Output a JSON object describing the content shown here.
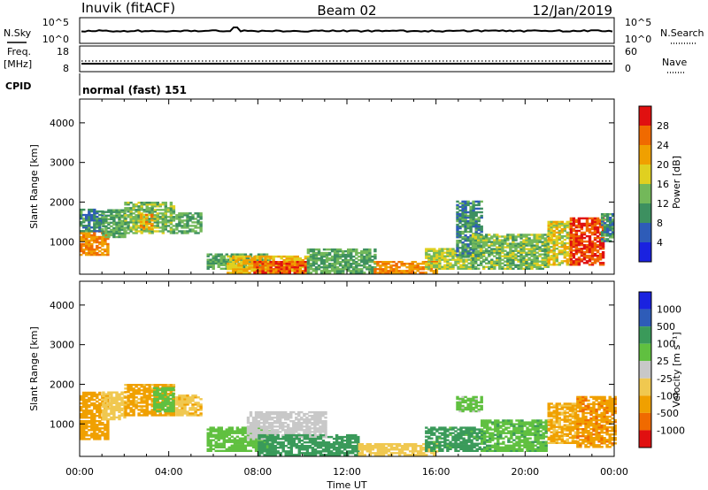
{
  "header": {
    "station": "Inuvik (fitACF)",
    "beam": "Beam 02",
    "date": "12/Jan/2019"
  },
  "left_labels": {
    "nsky": "N.Sky",
    "freq": "Freq.",
    "mhz": "[MHz]",
    "cpid": "CPID",
    "nsky_hi": "10^5",
    "nsky_lo": "10^0",
    "freq_hi": "18",
    "freq_lo": "8"
  },
  "right_labels": {
    "nsearch": "N.Search",
    "nave": "Nave",
    "nsearch_hi": "10^5",
    "nsearch_lo": "10^0",
    "nave_hi": "60",
    "nave_lo": "0"
  },
  "cpid_text": "normal (fast) 151",
  "colors": {
    "power": [
      "#1a22e0",
      "#2e5cb8",
      "#3d9060",
      "#73b85a",
      "#e0d020",
      "#f0a000",
      "#f06a00",
      "#e01010"
    ],
    "velocity": [
      "#e01010",
      "#f06a00",
      "#f0a000",
      "#f0c850",
      "#c8c8c8",
      "#60c040",
      "#3a9a5a",
      "#2e5cb8",
      "#1a22e0"
    ]
  },
  "chart_data": [
    {
      "type": "heatmap",
      "name": "power",
      "xlabel": "Time UT",
      "ylabel": "Slant Range [km]",
      "colorbar_label": "Power [dB]",
      "colorbar_ticks": [
        "28",
        "24",
        "20",
        "16",
        "12",
        "8",
        "4"
      ],
      "x_ticks": [
        "00:00",
        "04:00",
        "08:00",
        "12:00",
        "16:00",
        "20:00",
        "00:00"
      ],
      "xlim_hours": [
        0,
        24
      ],
      "ylim_km": [
        180,
        4600
      ],
      "y_ticks": [
        1000,
        2000,
        3000,
        4000
      ],
      "clim_db": [
        0,
        32
      ],
      "regions": [
        {
          "t0": 0.0,
          "t1": 1.3,
          "r0": 650,
          "r1": 1250,
          "value": 24
        },
        {
          "t0": 0.0,
          "t1": 1.0,
          "r0": 1250,
          "r1": 1800,
          "value": 10
        },
        {
          "t0": 1.0,
          "t1": 2.0,
          "r0": 1100,
          "r1": 1800,
          "value": 12
        },
        {
          "t0": 2.0,
          "t1": 4.2,
          "r0": 1200,
          "r1": 2000,
          "value": 14
        },
        {
          "t0": 2.7,
          "t1": 3.3,
          "r0": 1300,
          "r1": 1700,
          "value": 22
        },
        {
          "t0": 4.3,
          "t1": 5.5,
          "r0": 1200,
          "r1": 1700,
          "value": 12
        },
        {
          "t0": 5.7,
          "t1": 8.5,
          "r0": 300,
          "r1": 700,
          "value": 12
        },
        {
          "t0": 6.6,
          "t1": 10.2,
          "r0": 200,
          "r1": 650,
          "value": 20
        },
        {
          "t0": 7.8,
          "t1": 10.2,
          "r0": 200,
          "r1": 500,
          "value": 27
        },
        {
          "t0": 10.2,
          "t1": 13.2,
          "r0": 200,
          "r1": 800,
          "value": 12
        },
        {
          "t0": 13.2,
          "t1": 16.0,
          "r0": 200,
          "r1": 500,
          "value": 24
        },
        {
          "t0": 15.5,
          "t1": 17.6,
          "r0": 300,
          "r1": 800,
          "value": 16
        },
        {
          "t0": 16.9,
          "t1": 18.0,
          "r0": 600,
          "r1": 2000,
          "value": 10
        },
        {
          "t0": 17.6,
          "t1": 21.0,
          "r0": 300,
          "r1": 1200,
          "value": 14
        },
        {
          "t0": 21.0,
          "t1": 22.0,
          "r0": 400,
          "r1": 1500,
          "value": 18
        },
        {
          "t0": 22.0,
          "t1": 23.5,
          "r0": 400,
          "r1": 1600,
          "value": 28
        },
        {
          "t0": 23.4,
          "t1": 24.0,
          "r0": 1000,
          "r1": 1700,
          "value": 10
        }
      ]
    },
    {
      "type": "heatmap",
      "name": "velocity",
      "xlabel": "Time UT",
      "ylabel": "Slant Range [km]",
      "colorbar_label": "Velocity [m s⁻¹]",
      "colorbar_ticks": [
        "1000",
        "500",
        "100",
        "25",
        "-25",
        "-100",
        "-500",
        "-1000"
      ],
      "x_ticks": [
        "00:00",
        "04:00",
        "08:00",
        "12:00",
        "16:00",
        "20:00",
        "00:00"
      ],
      "xlim_hours": [
        0,
        24
      ],
      "ylim_km": [
        180,
        4600
      ],
      "y_ticks": [
        1000,
        2000,
        3000,
        4000
      ],
      "regions": [
        {
          "t0": 0.0,
          "t1": 1.3,
          "r0": 600,
          "r1": 1800,
          "value": -200
        },
        {
          "t0": 1.0,
          "t1": 2.0,
          "r0": 1100,
          "r1": 1800,
          "value": -60
        },
        {
          "t0": 2.0,
          "t1": 4.2,
          "r0": 1200,
          "r1": 2000,
          "value": -150
        },
        {
          "t0": 3.3,
          "t1": 4.2,
          "r0": 1300,
          "r1": 1900,
          "value": 60
        },
        {
          "t0": 4.3,
          "t1": 5.5,
          "r0": 1200,
          "r1": 1700,
          "value": -80
        },
        {
          "t0": 5.7,
          "t1": 8.5,
          "r0": 300,
          "r1": 900,
          "value": 50
        },
        {
          "t0": 7.5,
          "t1": 11.0,
          "r0": 600,
          "r1": 1300,
          "value": 0
        },
        {
          "t0": 8.0,
          "t1": 12.5,
          "r0": 200,
          "r1": 700,
          "value": 200
        },
        {
          "t0": 12.5,
          "t1": 16.0,
          "r0": 200,
          "r1": 500,
          "value": -60
        },
        {
          "t0": 15.5,
          "t1": 18.0,
          "r0": 300,
          "r1": 900,
          "value": 150
        },
        {
          "t0": 16.9,
          "t1": 18.0,
          "r0": 1300,
          "r1": 1700,
          "value": 40
        },
        {
          "t0": 18.0,
          "t1": 21.0,
          "r0": 300,
          "r1": 1100,
          "value": 80
        },
        {
          "t0": 21.0,
          "t1": 22.3,
          "r0": 500,
          "r1": 1500,
          "value": -120
        },
        {
          "t0": 22.3,
          "t1": 24.0,
          "r0": 400,
          "r1": 1700,
          "value": -400
        }
      ]
    }
  ]
}
